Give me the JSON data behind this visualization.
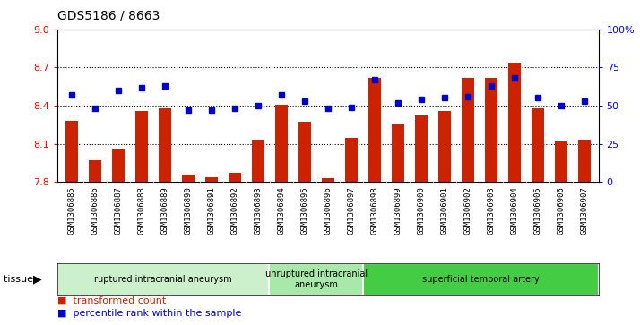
{
  "title": "GDS5186 / 8663",
  "samples": [
    "GSM1306885",
    "GSM1306886",
    "GSM1306887",
    "GSM1306888",
    "GSM1306889",
    "GSM1306890",
    "GSM1306891",
    "GSM1306892",
    "GSM1306893",
    "GSM1306894",
    "GSM1306895",
    "GSM1306896",
    "GSM1306897",
    "GSM1306898",
    "GSM1306899",
    "GSM1306900",
    "GSM1306901",
    "GSM1306902",
    "GSM1306903",
    "GSM1306904",
    "GSM1306905",
    "GSM1306906",
    "GSM1306907"
  ],
  "transformed_count": [
    8.28,
    7.97,
    8.06,
    8.36,
    8.38,
    7.86,
    7.84,
    7.87,
    8.13,
    8.41,
    8.27,
    7.83,
    8.15,
    8.62,
    8.25,
    8.32,
    8.36,
    8.62,
    8.62,
    8.74,
    8.38,
    8.12,
    8.13
  ],
  "percentile_rank": [
    57,
    48,
    60,
    62,
    63,
    47,
    47,
    48,
    50,
    57,
    53,
    48,
    49,
    67,
    52,
    54,
    55,
    56,
    63,
    68,
    55,
    50,
    53
  ],
  "groups": [
    {
      "label": "ruptured intracranial aneurysm",
      "start": 0,
      "end": 9,
      "color": "#ccf0cc"
    },
    {
      "label": "unruptured intracranial\naneurysm",
      "start": 9,
      "end": 13,
      "color": "#a8e8a8"
    },
    {
      "label": "superficial temporal artery",
      "start": 13,
      "end": 23,
      "color": "#44cc44"
    }
  ],
  "ylim_left": [
    7.8,
    9.0
  ],
  "ylim_right": [
    0,
    100
  ],
  "bar_color": "#cc2200",
  "dot_color": "#0000cc",
  "bg_color": "#d8d8d8",
  "plot_bg_color": "#ffffff",
  "yticks_left": [
    7.8,
    8.1,
    8.4,
    8.7,
    9.0
  ],
  "yticks_right": [
    0,
    25,
    50,
    75,
    100
  ],
  "ytick_labels_right": [
    "0",
    "25",
    "50",
    "75",
    "100%"
  ],
  "grid_levels": [
    8.1,
    8.4,
    8.7
  ]
}
